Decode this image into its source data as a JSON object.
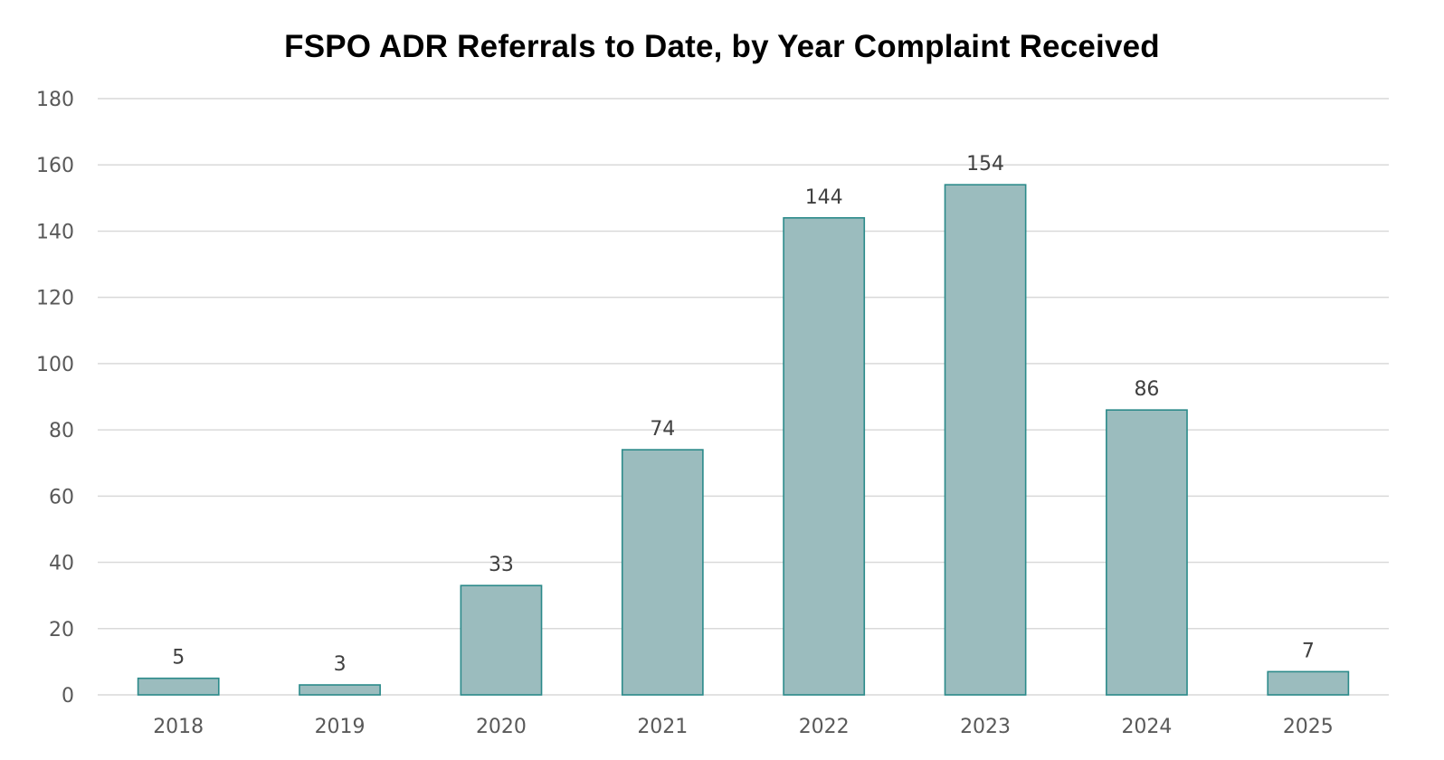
{
  "chart_data": {
    "type": "bar",
    "title": "FSPO ADR Referrals to Date, by Year Complaint Received",
    "xlabel": "",
    "ylabel": "",
    "categories": [
      "2018",
      "2019",
      "2020",
      "2021",
      "2022",
      "2023",
      "2024",
      "2025"
    ],
    "values": [
      5,
      3,
      33,
      74,
      144,
      154,
      86,
      7
    ],
    "ylim": [
      0,
      180
    ],
    "yticks": [
      0,
      20,
      40,
      60,
      80,
      100,
      120,
      140,
      160,
      180
    ],
    "grid": true,
    "legend": "none",
    "bar_fill": "#9bbcbe",
    "bar_stroke": "#2b8a8a",
    "gridline_color": "#d9d9d9"
  }
}
